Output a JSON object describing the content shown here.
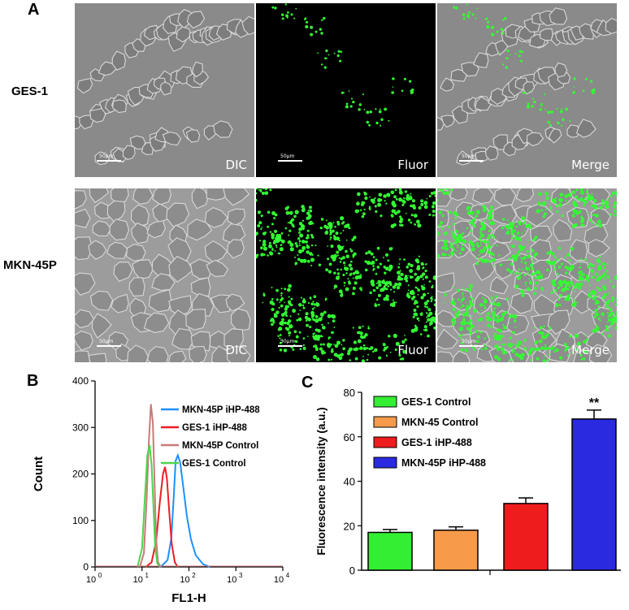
{
  "panels": {
    "a": "A",
    "b": "B",
    "c": "C"
  },
  "micrographs": {
    "rows": [
      "GES-1",
      "MKN-45P"
    ],
    "columns": [
      "DIC",
      "Fluor",
      "Merge"
    ],
    "scalebar": "50μm",
    "fluor_color": "#33ff33"
  },
  "chart_data": [
    {
      "type": "line",
      "xlabel": "FL1-H",
      "ylabel": "Count",
      "x_scale": "log",
      "xlim": [
        1,
        10000
      ],
      "ylim": [
        0,
        400
      ],
      "x_tick_base": "10",
      "x_tick_exponents": [
        "0",
        "1",
        "2",
        "3",
        "4"
      ],
      "y_ticks": [
        "0",
        "100",
        "200",
        "300",
        "400"
      ],
      "legend_position": "top-right",
      "series": [
        {
          "name": "MKN-45P iHP-488",
          "color": "#1e90ff",
          "x": [
            25,
            35,
            42,
            48,
            52,
            58,
            65,
            75,
            90,
            110,
            140,
            200,
            280
          ],
          "y": [
            0,
            15,
            60,
            160,
            228,
            240,
            225,
            175,
            110,
            60,
            25,
            6,
            0
          ]
        },
        {
          "name": "GES-1 iHP-488",
          "color": "#ee1c25",
          "x": [
            12,
            16,
            20,
            24,
            28,
            31,
            34,
            38,
            43,
            50,
            58
          ],
          "y": [
            0,
            10,
            55,
            140,
            200,
            215,
            190,
            120,
            50,
            10,
            0
          ]
        },
        {
          "name": "MKN-45P Control",
          "color": "#c97a78",
          "x": [
            9,
            11,
            12.5,
            14,
            15.5,
            17,
            18.5,
            20,
            22,
            25
          ],
          "y": [
            0,
            30,
            140,
            270,
            350,
            310,
            180,
            60,
            10,
            0
          ]
        },
        {
          "name": "GES-1 Control",
          "color": "#4cd64c",
          "x": [
            8,
            10,
            11.5,
            13,
            14.5,
            16,
            17.5,
            19,
            21,
            24
          ],
          "y": [
            0,
            40,
            150,
            240,
            262,
            220,
            130,
            45,
            8,
            0
          ]
        }
      ]
    },
    {
      "type": "bar",
      "ylabel": "Fluorescence intensity (a.u.)",
      "ylim": [
        0,
        80
      ],
      "y_ticks": [
        "0",
        "20",
        "40",
        "60",
        "80"
      ],
      "categories": [
        "GES-1 Control",
        "MKN-45 Control",
        "GES-1 iHP-488",
        "MKN-45P iHP-488"
      ],
      "values": [
        17,
        18,
        30,
        68
      ],
      "errors": [
        1.3,
        1.5,
        2.5,
        4
      ],
      "colors": [
        "#33ee33",
        "#f79a4a",
        "#ee1c1c",
        "#2a2ae0"
      ],
      "legend_position": "top-left",
      "annotation": "**"
    }
  ]
}
